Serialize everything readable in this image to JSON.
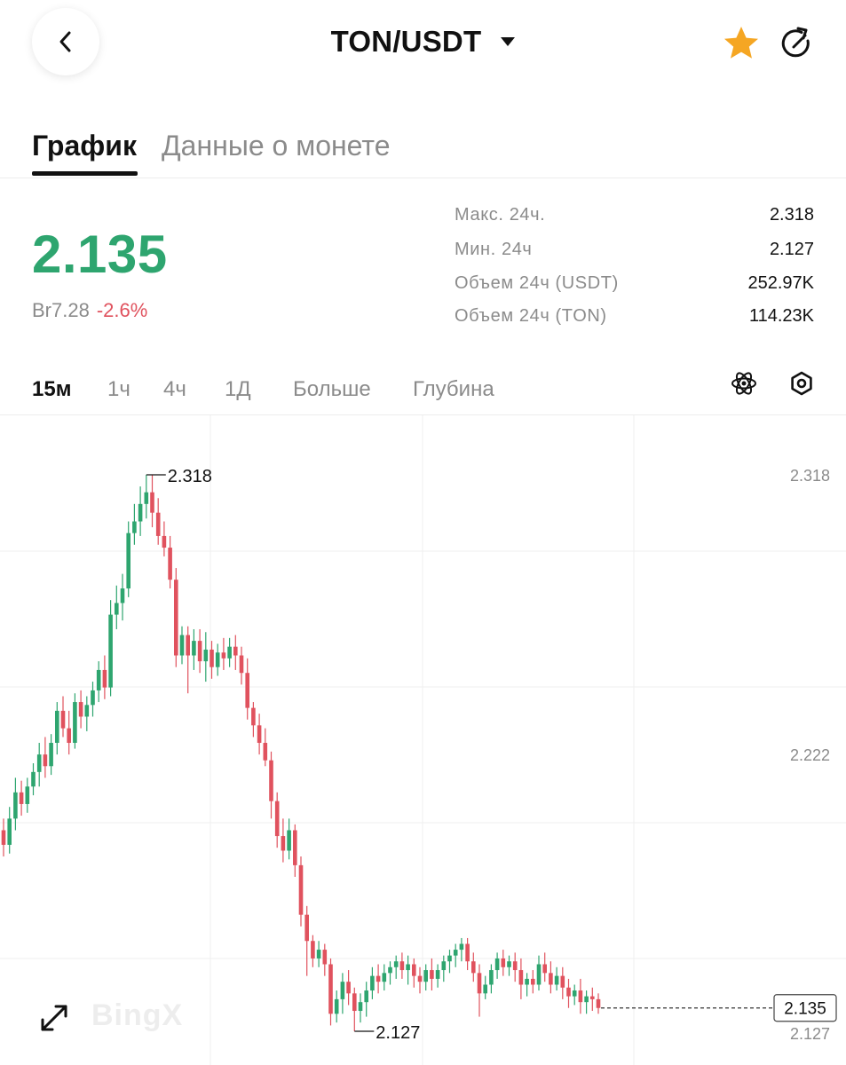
{
  "header": {
    "pair": "TON/USDT"
  },
  "icons": {
    "back": "chevron-left-icon",
    "star": "star-icon",
    "share": "refresh-share-icon",
    "expand": "expand-icon",
    "indicators": "atom-icon",
    "settings": "hexagon-gear-icon"
  },
  "colors": {
    "up": "#2ea56f",
    "down": "#e0525e",
    "star": "#f5a623"
  },
  "tabs": [
    {
      "label": "График"
    },
    {
      "label": "Данные о монете"
    }
  ],
  "price": {
    "last": "2.135",
    "fiat": "Br7.28",
    "change": "-2.6%"
  },
  "stats": [
    {
      "label": "Макс. 24ч.",
      "value": "2.318"
    },
    {
      "label": "Мин. 24ч",
      "value": "2.127"
    },
    {
      "label": "Объем 24ч (USDT)",
      "value": "252.97K"
    },
    {
      "label": "Объем 24ч (TON)",
      "value": "114.23K"
    }
  ],
  "timeframes": [
    {
      "label": "15м"
    },
    {
      "label": "1ч"
    },
    {
      "label": "4ч"
    },
    {
      "label": "1Д"
    },
    {
      "label": "Больше"
    },
    {
      "label": "Глубина"
    }
  ],
  "watermark": "BingX",
  "chart_data": {
    "type": "candlestick",
    "y_axis_labels": [
      "2.318",
      "2.222",
      "2.127"
    ],
    "ylim": [
      2.127,
      2.318
    ],
    "high_label": "2.318",
    "low_label": "2.127",
    "last_price_label": "2.135",
    "grid": true,
    "candles": [
      {
        "o": 2.196,
        "h": 2.2,
        "c": 2.191,
        "l": 2.187
      },
      {
        "o": 2.191,
        "h": 2.204,
        "c": 2.2,
        "l": 2.188
      },
      {
        "o": 2.2,
        "h": 2.214,
        "c": 2.209,
        "l": 2.196
      },
      {
        "o": 2.209,
        "h": 2.213,
        "c": 2.205,
        "l": 2.201
      },
      {
        "o": 2.205,
        "h": 2.214,
        "c": 2.211,
        "l": 2.202
      },
      {
        "o": 2.211,
        "h": 2.219,
        "c": 2.216,
        "l": 2.208
      },
      {
        "o": 2.216,
        "h": 2.226,
        "c": 2.222,
        "l": 2.211
      },
      {
        "o": 2.222,
        "h": 2.228,
        "c": 2.218,
        "l": 2.214
      },
      {
        "o": 2.218,
        "h": 2.229,
        "c": 2.226,
        "l": 2.215
      },
      {
        "o": 2.226,
        "h": 2.24,
        "c": 2.237,
        "l": 2.222
      },
      {
        "o": 2.237,
        "h": 2.242,
        "c": 2.231,
        "l": 2.228
      },
      {
        "o": 2.231,
        "h": 2.237,
        "c": 2.226,
        "l": 2.222
      },
      {
        "o": 2.226,
        "h": 2.243,
        "c": 2.24,
        "l": 2.224
      },
      {
        "o": 2.24,
        "h": 2.244,
        "c": 2.235,
        "l": 2.231
      },
      {
        "o": 2.235,
        "h": 2.242,
        "c": 2.239,
        "l": 2.23
      },
      {
        "o": 2.239,
        "h": 2.247,
        "c": 2.244,
        "l": 2.235
      },
      {
        "o": 2.244,
        "h": 2.254,
        "c": 2.251,
        "l": 2.24
      },
      {
        "o": 2.251,
        "h": 2.256,
        "c": 2.245,
        "l": 2.241
      },
      {
        "o": 2.245,
        "h": 2.275,
        "c": 2.27,
        "l": 2.242
      },
      {
        "o": 2.27,
        "h": 2.28,
        "c": 2.274,
        "l": 2.265
      },
      {
        "o": 2.274,
        "h": 2.284,
        "c": 2.279,
        "l": 2.268
      },
      {
        "o": 2.279,
        "h": 2.302,
        "c": 2.298,
        "l": 2.276
      },
      {
        "o": 2.298,
        "h": 2.308,
        "c": 2.302,
        "l": 2.294
      },
      {
        "o": 2.302,
        "h": 2.314,
        "c": 2.308,
        "l": 2.297
      },
      {
        "o": 2.308,
        "h": 2.318,
        "c": 2.312,
        "l": 2.303
      },
      {
        "o": 2.312,
        "h": 2.318,
        "c": 2.305,
        "l": 2.3
      },
      {
        "o": 2.305,
        "h": 2.31,
        "c": 2.297,
        "l": 2.294
      },
      {
        "o": 2.297,
        "h": 2.302,
        "c": 2.293,
        "l": 2.29
      },
      {
        "o": 2.293,
        "h": 2.297,
        "c": 2.282,
        "l": 2.279
      },
      {
        "o": 2.282,
        "h": 2.286,
        "c": 2.256,
        "l": 2.252
      },
      {
        "o": 2.256,
        "h": 2.266,
        "c": 2.263,
        "l": 2.253
      },
      {
        "o": 2.263,
        "h": 2.266,
        "c": 2.256,
        "l": 2.243
      },
      {
        "o": 2.256,
        "h": 2.265,
        "c": 2.261,
        "l": 2.251
      },
      {
        "o": 2.261,
        "h": 2.265,
        "c": 2.254,
        "l": 2.25
      },
      {
        "o": 2.254,
        "h": 2.264,
        "c": 2.258,
        "l": 2.247
      },
      {
        "o": 2.258,
        "h": 2.261,
        "c": 2.252,
        "l": 2.248
      },
      {
        "o": 2.252,
        "h": 2.26,
        "c": 2.257,
        "l": 2.249
      },
      {
        "o": 2.257,
        "h": 2.262,
        "c": 2.255,
        "l": 2.251
      },
      {
        "o": 2.255,
        "h": 2.262,
        "c": 2.259,
        "l": 2.252
      },
      {
        "o": 2.259,
        "h": 2.263,
        "c": 2.256,
        "l": 2.251
      },
      {
        "o": 2.256,
        "h": 2.259,
        "c": 2.25,
        "l": 2.246
      },
      {
        "o": 2.25,
        "h": 2.255,
        "c": 2.238,
        "l": 2.234
      },
      {
        "o": 2.238,
        "h": 2.24,
        "c": 2.232,
        "l": 2.228
      },
      {
        "o": 2.232,
        "h": 2.236,
        "c": 2.226,
        "l": 2.222
      },
      {
        "o": 2.226,
        "h": 2.231,
        "c": 2.22,
        "l": 2.218
      },
      {
        "o": 2.22,
        "h": 2.223,
        "c": 2.206,
        "l": 2.2
      },
      {
        "o": 2.206,
        "h": 2.209,
        "c": 2.194,
        "l": 2.19
      },
      {
        "o": 2.194,
        "h": 2.2,
        "c": 2.189,
        "l": 2.185
      },
      {
        "o": 2.189,
        "h": 2.2,
        "c": 2.196,
        "l": 2.186
      },
      {
        "o": 2.196,
        "h": 2.198,
        "c": 2.184,
        "l": 2.18
      },
      {
        "o": 2.184,
        "h": 2.187,
        "c": 2.167,
        "l": 2.163
      },
      {
        "o": 2.167,
        "h": 2.17,
        "c": 2.158,
        "l": 2.146
      },
      {
        "o": 2.158,
        "h": 2.16,
        "c": 2.152,
        "l": 2.149
      },
      {
        "o": 2.152,
        "h": 2.158,
        "c": 2.155,
        "l": 2.149
      },
      {
        "o": 2.155,
        "h": 2.157,
        "c": 2.15,
        "l": 2.146
      },
      {
        "o": 2.15,
        "h": 2.152,
        "c": 2.133,
        "l": 2.129
      },
      {
        "o": 2.133,
        "h": 2.141,
        "c": 2.138,
        "l": 2.13
      },
      {
        "o": 2.138,
        "h": 2.147,
        "c": 2.144,
        "l": 2.133
      },
      {
        "o": 2.144,
        "h": 2.148,
        "c": 2.14,
        "l": 2.136
      },
      {
        "o": 2.14,
        "h": 2.142,
        "c": 2.134,
        "l": 2.127
      },
      {
        "o": 2.134,
        "h": 2.14,
        "c": 2.137,
        "l": 2.13
      },
      {
        "o": 2.137,
        "h": 2.144,
        "c": 2.141,
        "l": 2.132
      },
      {
        "o": 2.141,
        "h": 2.149,
        "c": 2.146,
        "l": 2.138
      },
      {
        "o": 2.146,
        "h": 2.15,
        "c": 2.144,
        "l": 2.14
      },
      {
        "o": 2.144,
        "h": 2.15,
        "c": 2.147,
        "l": 2.141
      },
      {
        "o": 2.147,
        "h": 2.151,
        "c": 2.149,
        "l": 2.143
      },
      {
        "o": 2.149,
        "h": 2.153,
        "c": 2.151,
        "l": 2.145
      },
      {
        "o": 2.151,
        "h": 2.154,
        "c": 2.148,
        "l": 2.145
      },
      {
        "o": 2.148,
        "h": 2.153,
        "c": 2.15,
        "l": 2.143
      },
      {
        "o": 2.15,
        "h": 2.152,
        "c": 2.146,
        "l": 2.142
      },
      {
        "o": 2.146,
        "h": 2.149,
        "c": 2.144,
        "l": 2.14
      },
      {
        "o": 2.144,
        "h": 2.15,
        "c": 2.148,
        "l": 2.141
      },
      {
        "o": 2.148,
        "h": 2.152,
        "c": 2.145,
        "l": 2.141
      },
      {
        "o": 2.145,
        "h": 2.15,
        "c": 2.148,
        "l": 2.142
      },
      {
        "o": 2.148,
        "h": 2.153,
        "c": 2.151,
        "l": 2.144
      },
      {
        "o": 2.151,
        "h": 2.155,
        "c": 2.153,
        "l": 2.147
      },
      {
        "o": 2.153,
        "h": 2.157,
        "c": 2.155,
        "l": 2.149
      },
      {
        "o": 2.155,
        "h": 2.159,
        "c": 2.157,
        "l": 2.151
      },
      {
        "o": 2.157,
        "h": 2.159,
        "c": 2.151,
        "l": 2.148
      },
      {
        "o": 2.151,
        "h": 2.154,
        "c": 2.147,
        "l": 2.144
      },
      {
        "o": 2.147,
        "h": 2.15,
        "c": 2.14,
        "l": 2.132
      },
      {
        "o": 2.14,
        "h": 2.146,
        "c": 2.143,
        "l": 2.138
      },
      {
        "o": 2.143,
        "h": 2.15,
        "c": 2.148,
        "l": 2.14
      },
      {
        "o": 2.148,
        "h": 2.154,
        "c": 2.152,
        "l": 2.145
      },
      {
        "o": 2.152,
        "h": 2.155,
        "c": 2.149,
        "l": 2.146
      },
      {
        "o": 2.149,
        "h": 2.153,
        "c": 2.151,
        "l": 2.146
      },
      {
        "o": 2.151,
        "h": 2.154,
        "c": 2.148,
        "l": 2.144
      },
      {
        "o": 2.148,
        "h": 2.152,
        "c": 2.143,
        "l": 2.138
      },
      {
        "o": 2.143,
        "h": 2.147,
        "c": 2.145,
        "l": 2.139
      },
      {
        "o": 2.145,
        "h": 2.148,
        "c": 2.143,
        "l": 2.14
      },
      {
        "o": 2.143,
        "h": 2.153,
        "c": 2.15,
        "l": 2.141
      },
      {
        "o": 2.15,
        "h": 2.154,
        "c": 2.147,
        "l": 2.144
      },
      {
        "o": 2.147,
        "h": 2.151,
        "c": 2.143,
        "l": 2.14
      },
      {
        "o": 2.143,
        "h": 2.149,
        "c": 2.146,
        "l": 2.141
      },
      {
        "o": 2.146,
        "h": 2.149,
        "c": 2.142,
        "l": 2.138
      },
      {
        "o": 2.142,
        "h": 2.145,
        "c": 2.139,
        "l": 2.135
      },
      {
        "o": 2.139,
        "h": 2.143,
        "c": 2.141,
        "l": 2.136
      },
      {
        "o": 2.141,
        "h": 2.145,
        "c": 2.137,
        "l": 2.133
      },
      {
        "o": 2.137,
        "h": 2.141,
        "c": 2.139,
        "l": 2.133
      },
      {
        "o": 2.139,
        "h": 2.142,
        "c": 2.138,
        "l": 2.134
      },
      {
        "o": 2.138,
        "h": 2.14,
        "c": 2.135,
        "l": 2.133
      }
    ]
  }
}
